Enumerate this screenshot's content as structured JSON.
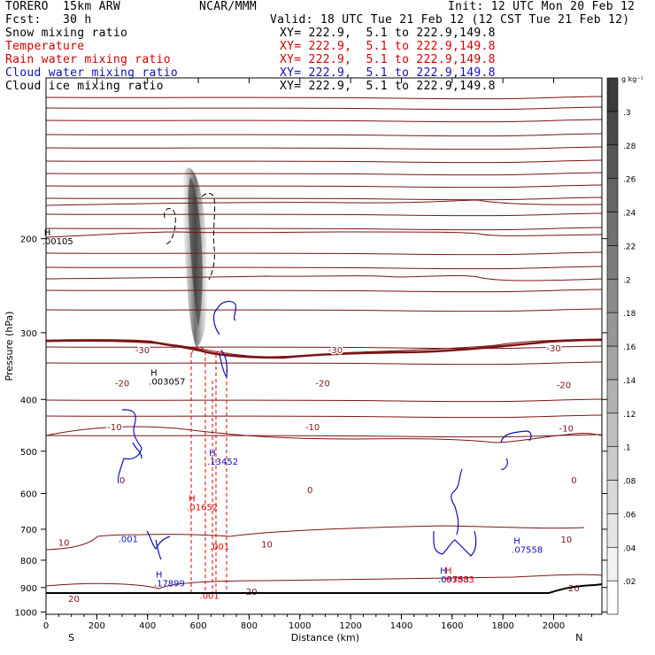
{
  "header": {
    "model": "TORERO  15km ARW",
    "center": "NCAR/MMM",
    "init": "Init: 12 UTC Mon 20 Feb 12",
    "fcst": "Fcst:   30 h",
    "valid": "Valid: 18 UTC Tue 21 Feb 12 (12 CST Tue 21 Feb 12)"
  },
  "fields": [
    {
      "label": "Snow mixing ratio",
      "xy": "XY= 222.9,  5.1 to 222.9,149.8",
      "color": "#000000"
    },
    {
      "label": "Temperature",
      "xy": "XY= 222.9,  5.1 to 222.9,149.8",
      "color": "#d00000"
    },
    {
      "label": "Rain water mixing ratio",
      "xy": "XY= 222.9,  5.1 to 222.9,149.8",
      "color": "#d00000"
    },
    {
      "label": "Cloud water mixing ratio",
      "xy": "XY= 222.9,  5.1 to 222.9,149.8",
      "color": "#1010c0"
    },
    {
      "label": "Cloud ice mixing ratio",
      "xy": "XY= 222.9,  5.1 to 222.9,149.8",
      "color": "#000000"
    }
  ],
  "chart_data": {
    "type": "cross-section",
    "xlabel": "Distance (km)",
    "ylabel": "Pressure (hPa)",
    "x_ticks": [
      0,
      200,
      400,
      600,
      800,
      1000,
      1200,
      1400,
      1600,
      1800,
      2000
    ],
    "y_ticks": [
      200,
      300,
      400,
      500,
      600,
      700,
      800,
      900,
      1000
    ],
    "xlim": [
      0,
      2190
    ],
    "ylim": [
      1010,
      100
    ],
    "y_scale": "log",
    "end_labels": {
      "left": "S",
      "right": "N"
    },
    "colorbar": {
      "unit": "g kg⁻¹",
      "ticks": [
        ".02",
        ".04",
        ".06",
        ".08",
        ".1",
        ".12",
        ".14",
        ".16",
        ".18",
        ".2",
        ".22",
        ".24",
        ".26",
        ".28",
        ".3"
      ],
      "colors": [
        "#ffffff",
        "#f2f2f2",
        "#e5e5e5",
        "#d8d8d8",
        "#cbcbcb",
        "#bebebe",
        "#b1b1b1",
        "#a4a4a4",
        "#979797",
        "#8a8a8a",
        "#7d7d7d",
        "#707070",
        "#636363",
        "#565656",
        "#494949",
        "#3c3c3c"
      ]
    },
    "temperature_contour_labels": [
      {
        "value": "-30",
        "points": [
          [
            380,
            323
          ],
          [
            1140,
            323
          ],
          [
            2000,
            320
          ]
        ]
      },
      {
        "value": "-20",
        "points": [
          [
            300,
            372
          ],
          [
            1090,
            372
          ],
          [
            2040,
            375
          ]
        ]
      },
      {
        "value": "-10",
        "points": [
          [
            270,
            450
          ],
          [
            1050,
            450
          ],
          [
            2050,
            452
          ]
        ]
      },
      {
        "value": "0",
        "points": [
          [
            300,
            565
          ],
          [
            1040,
            590
          ],
          [
            2080,
            565
          ]
        ]
      },
      {
        "value": "10",
        "points": [
          [
            70,
            740
          ],
          [
            870,
            745
          ],
          [
            2050,
            730
          ]
        ]
      },
      {
        "value": "20",
        "points": [
          [
            110,
            943
          ],
          [
            810,
            915
          ],
          [
            2080,
            900
          ]
        ]
      }
    ],
    "maxima_labels": [
      {
        "field": "Snow mixing ratio",
        "symbol": "H",
        "value": ".00105",
        "x": 20,
        "p": 205
      },
      {
        "field": "Cloud ice mixing ratio",
        "symbol": "H",
        "value": ".003057",
        "x": 440,
        "p": 375
      },
      {
        "field": "Cloud water mixing ratio",
        "symbol": "H",
        "value": ".13452",
        "x": 670,
        "p": 530
      },
      {
        "field": "Rain water mixing ratio",
        "symbol": "H",
        "value": ".01652",
        "x": 590,
        "p": 645
      },
      {
        "field": "Rain water mixing ratio",
        "symbol": "",
        "value": ".001",
        "x": 680,
        "p": 765
      },
      {
        "field": "Rain water mixing ratio",
        "symbol": "",
        "value": ".001",
        "x": 640,
        "p": 945
      },
      {
        "field": "Cloud water mixing ratio",
        "symbol": "",
        "value": ".001",
        "x": 320,
        "p": 740
      },
      {
        "field": "Cloud water mixing ratio",
        "symbol": "H",
        "value": ".17899",
        "x": 460,
        "p": 895
      },
      {
        "field": "Cloud water mixing ratio",
        "symbol": "H",
        "value": ".09753",
        "x": 1580,
        "p": 880
      },
      {
        "field": "Rain water mixing ratio",
        "symbol": "H",
        "value": ".03883",
        "x": 1600,
        "p": 880
      },
      {
        "field": "Cloud water mixing ratio",
        "symbol": "H",
        "value": ".07558",
        "x": 1870,
        "p": 775
      }
    ]
  }
}
